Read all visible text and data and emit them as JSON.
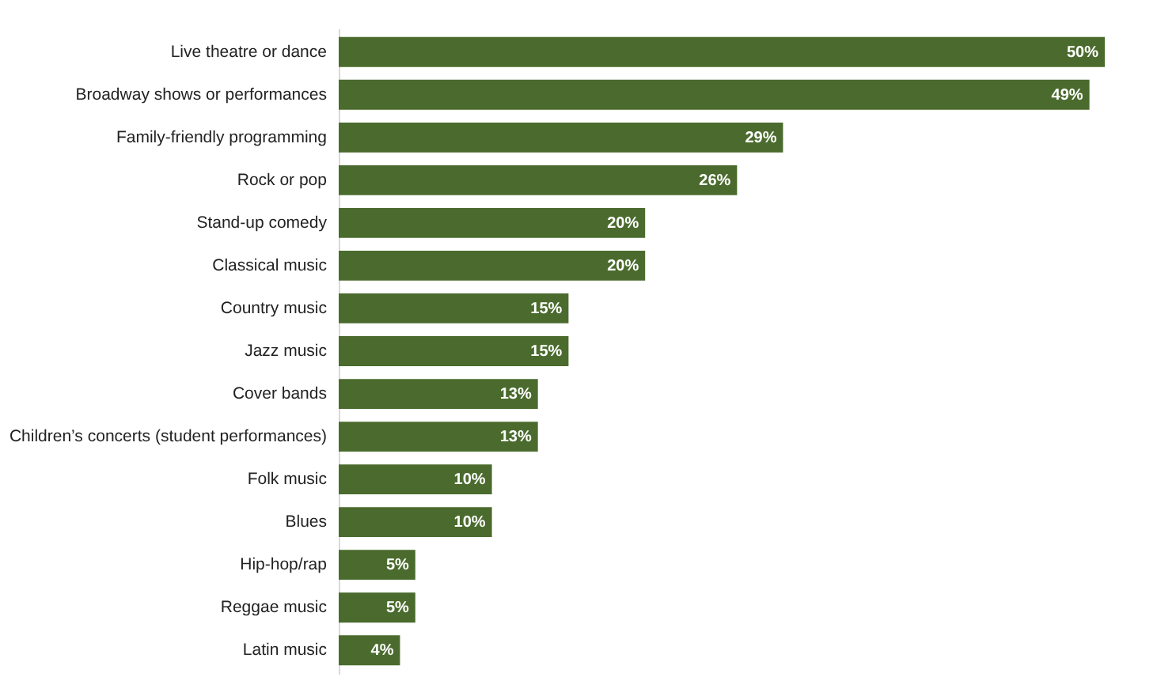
{
  "chart_data": {
    "type": "bar",
    "orientation": "horizontal",
    "categories": [
      "Live theatre or dance",
      "Broadway shows or performances",
      "Family-friendly programming",
      "Rock or pop",
      "Stand-up comedy",
      "Classical music",
      "Country music",
      "Jazz music",
      "Cover bands",
      "Children’s concerts (student performances)",
      "Folk music",
      "Blues",
      "Hip-hop/rap",
      "Reggae music",
      "Latin music"
    ],
    "values": [
      50,
      49,
      29,
      26,
      20,
      20,
      15,
      15,
      13,
      13,
      10,
      10,
      5,
      5,
      4
    ],
    "value_labels": [
      "50%",
      "49%",
      "29%",
      "26%",
      "20%",
      "20%",
      "15%",
      "15%",
      "13%",
      "13%",
      "10%",
      "10%",
      "5%",
      "5%",
      "4%"
    ],
    "color": "#4a6b2d",
    "tick_labels": "y"
  }
}
